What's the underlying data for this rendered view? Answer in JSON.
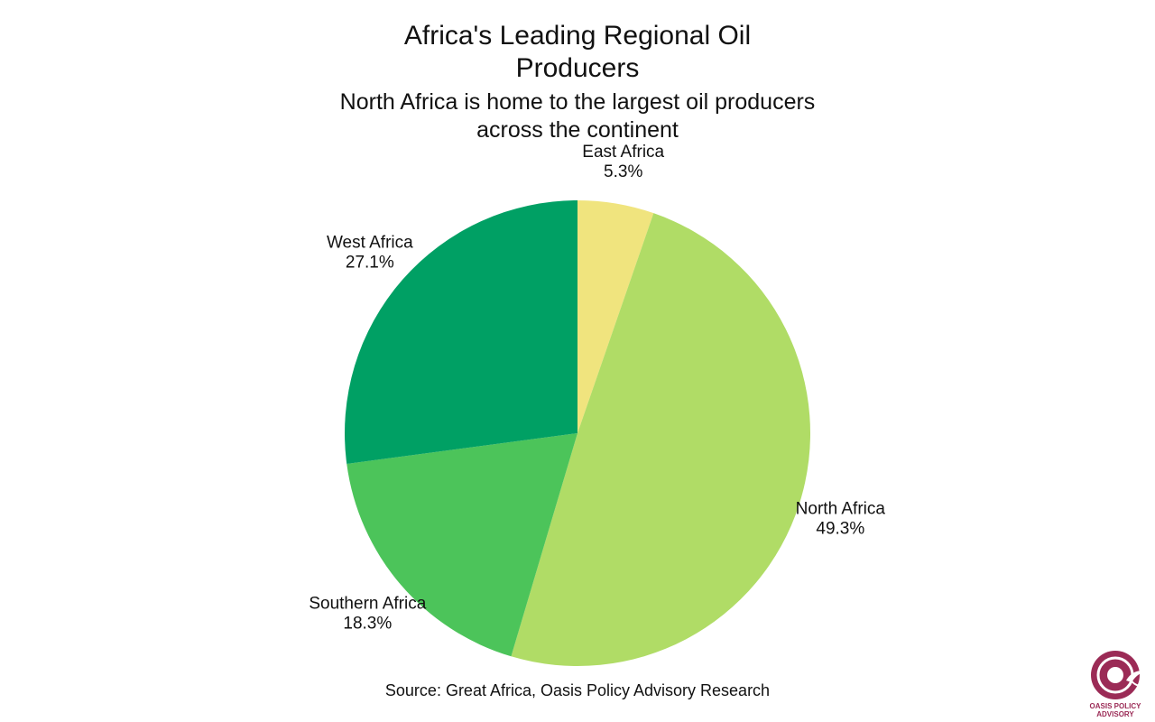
{
  "chart_data": {
    "type": "pie",
    "title": "Africa's Leading Regional Oil Producers",
    "subtitle": "North Africa is home to the largest oil producers across the continent",
    "source": "Source: Great Africa, Oasis Policy Advisory Research",
    "slices": [
      {
        "name": "East Africa",
        "value": 5.3,
        "label": "5.3%",
        "color": "#f0e47e"
      },
      {
        "name": "North Africa",
        "value": 49.3,
        "label": "49.3%",
        "color": "#b0dc66"
      },
      {
        "name": "Southern Africa",
        "value": 18.3,
        "label": "18.3%",
        "color": "#4cc45a"
      },
      {
        "name": "West Africa",
        "value": 27.1,
        "label": "27.1%",
        "color": "#00a064"
      }
    ],
    "start_angle": "12 o'clock",
    "direction": "clockwise"
  },
  "branding": {
    "logo_text": "OASIS POLICY ADVISORY",
    "logo_color": "#9b2b56"
  }
}
